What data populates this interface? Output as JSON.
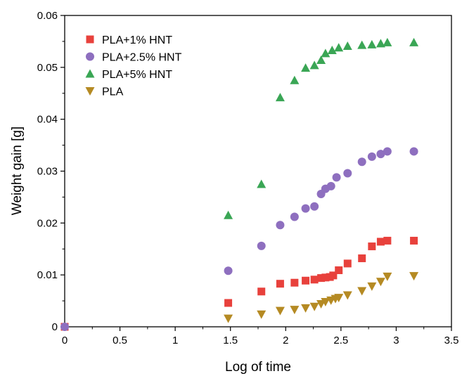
{
  "chart_data": {
    "type": "scatter",
    "xlabel": "Log of time",
    "ylabel": "Weight gain [g]",
    "xlim": [
      0,
      3.5
    ],
    "ylim": [
      0,
      0.06
    ],
    "x_ticks": [
      "0",
      "0.5",
      "1",
      "1.5",
      "2",
      "2.5",
      "3",
      "3.5"
    ],
    "y_ticks": [
      "0",
      "0.01",
      "0.02",
      "0.03",
      "0.04",
      "0.05",
      "0.06"
    ],
    "grid": false,
    "legend_position": "top-left",
    "series": [
      {
        "name": "PLA+1% HNT",
        "marker": "square",
        "color": "#e8413c",
        "points": [
          [
            0,
            0
          ],
          [
            1.48,
            0.0046
          ],
          [
            1.78,
            0.0068
          ],
          [
            1.95,
            0.0083
          ],
          [
            2.08,
            0.0085
          ],
          [
            2.18,
            0.0089
          ],
          [
            2.26,
            0.0091
          ],
          [
            2.32,
            0.0094
          ],
          [
            2.36,
            0.0095
          ],
          [
            2.4,
            0.0096
          ],
          [
            2.43,
            0.0099
          ],
          [
            2.48,
            0.0109
          ],
          [
            2.56,
            0.0122
          ],
          [
            2.69,
            0.0132
          ],
          [
            2.78,
            0.0155
          ],
          [
            2.86,
            0.0164
          ],
          [
            2.92,
            0.0166
          ],
          [
            3.16,
            0.0166
          ]
        ]
      },
      {
        "name": "PLA+2.5% HNT",
        "marker": "circle",
        "color": "#8e6fbf",
        "points": [
          [
            0,
            0
          ],
          [
            1.48,
            0.0108
          ],
          [
            1.78,
            0.0156
          ],
          [
            1.95,
            0.0196
          ],
          [
            2.08,
            0.0212
          ],
          [
            2.18,
            0.0228
          ],
          [
            2.26,
            0.0232
          ],
          [
            2.32,
            0.0256
          ],
          [
            2.36,
            0.0266
          ],
          [
            2.41,
            0.0271
          ],
          [
            2.46,
            0.0288
          ],
          [
            2.56,
            0.0296
          ],
          [
            2.69,
            0.0318
          ],
          [
            2.78,
            0.0328
          ],
          [
            2.86,
            0.0333
          ],
          [
            2.92,
            0.0338
          ],
          [
            3.16,
            0.0338
          ]
        ]
      },
      {
        "name": "PLA+5% HNT",
        "marker": "triangle-up",
        "color": "#3aa655",
        "points": [
          [
            1.48,
            0.0215
          ],
          [
            1.78,
            0.0275
          ],
          [
            1.95,
            0.0442
          ],
          [
            2.08,
            0.0475
          ],
          [
            2.18,
            0.0499
          ],
          [
            2.26,
            0.0504
          ],
          [
            2.32,
            0.0514
          ],
          [
            2.36,
            0.0527
          ],
          [
            2.42,
            0.0533
          ],
          [
            2.48,
            0.0538
          ],
          [
            2.56,
            0.0541
          ],
          [
            2.69,
            0.0543
          ],
          [
            2.78,
            0.0544
          ],
          [
            2.86,
            0.0546
          ],
          [
            2.92,
            0.0548
          ],
          [
            3.16,
            0.0548
          ]
        ]
      },
      {
        "name": "PLA",
        "marker": "triangle-down",
        "color": "#b58a23",
        "points": [
          [
            1.48,
            0.0016
          ],
          [
            1.78,
            0.0024
          ],
          [
            1.95,
            0.0031
          ],
          [
            2.08,
            0.0033
          ],
          [
            2.18,
            0.0036
          ],
          [
            2.26,
            0.0039
          ],
          [
            2.32,
            0.0044
          ],
          [
            2.36,
            0.0048
          ],
          [
            2.41,
            0.0051
          ],
          [
            2.45,
            0.0054
          ],
          [
            2.48,
            0.0056
          ],
          [
            2.56,
            0.0061
          ],
          [
            2.69,
            0.0069
          ],
          [
            2.78,
            0.0078
          ],
          [
            2.86,
            0.0087
          ],
          [
            2.92,
            0.0097
          ],
          [
            3.16,
            0.0098
          ]
        ]
      }
    ]
  }
}
